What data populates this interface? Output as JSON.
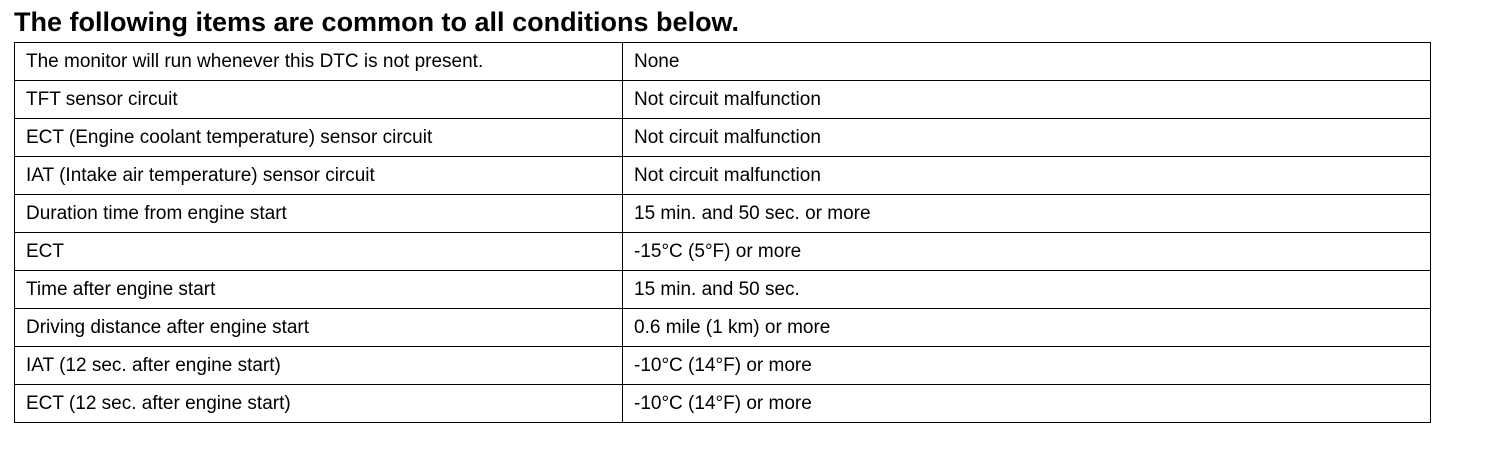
{
  "title": "The following items are common to all conditions below.",
  "table": {
    "rows": [
      [
        "The monitor will run whenever this DTC is not present.",
        "None"
      ],
      [
        "TFT sensor circuit",
        "Not circuit malfunction"
      ],
      [
        "ECT (Engine coolant temperature) sensor circuit",
        "Not circuit malfunction"
      ],
      [
        "IAT (Intake air temperature) sensor circuit",
        "Not circuit malfunction"
      ],
      [
        "Duration time from engine start",
        "15 min. and 50 sec. or more"
      ],
      [
        "ECT",
        "-15°C (5°F) or more"
      ],
      [
        "Time after engine start",
        "15 min. and 50 sec."
      ],
      [
        "Driving distance after engine start",
        "0.6 mile (1 km) or more"
      ],
      [
        "IAT (12 sec. after engine start)",
        "-10°C (14°F) or more"
      ],
      [
        "ECT (12 sec. after engine start)",
        "-10°C (14°F) or more"
      ]
    ]
  }
}
